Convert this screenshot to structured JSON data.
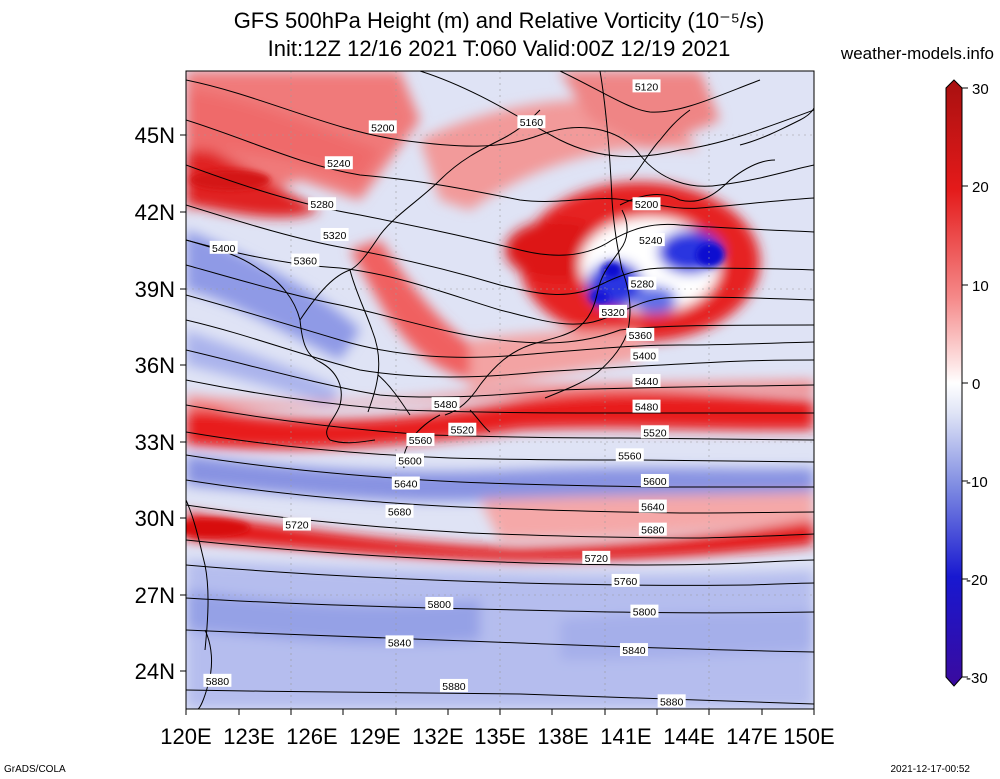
{
  "title_line1": "GFS 500hPa Height (m) and Relative Vorticity (10⁻⁵/s)",
  "title_line2": "Init:12Z 12/16 2021 T:060 Valid:00Z 12/19 2021",
  "site": "weather-models.info",
  "footer_left": "GrADS/COLA",
  "footer_right": "2021-12-17-00:52",
  "lon_labels": [
    "120E",
    "123E",
    "126E",
    "129E",
    "132E",
    "135E",
    "138E",
    "141E",
    "144E",
    "147E",
    "150E"
  ],
  "lat_labels": [
    "45N",
    "42N",
    "39N",
    "36N",
    "33N",
    "30N",
    "27N",
    "24N"
  ],
  "colorbar": {
    "ticks": [
      "30",
      "20",
      "10",
      "0",
      "-10",
      "-20",
      "-30"
    ],
    "colors": [
      "#b01010",
      "#e41a1a",
      "#f26a6a",
      "#fbd2d2",
      "#ffffff",
      "#d0d8f2",
      "#6f7fe0",
      "#1a1acc",
      "#3a0a9e"
    ]
  },
  "contour_labels": [
    {
      "text": "5120",
      "lon": 142.0,
      "lat": 46.6
    },
    {
      "text": "5160",
      "lon": 136.5,
      "lat": 45.2
    },
    {
      "text": "5200",
      "lon": 129.4,
      "lat": 45.0
    },
    {
      "text": "5240",
      "lon": 127.3,
      "lat": 43.6
    },
    {
      "text": "5280",
      "lon": 126.5,
      "lat": 42.0
    },
    {
      "text": "5320",
      "lon": 127.1,
      "lat": 40.8
    },
    {
      "text": "5360",
      "lon": 125.7,
      "lat": 39.8
    },
    {
      "text": "5400",
      "lon": 121.8,
      "lat": 40.3
    },
    {
      "text": "5200",
      "lon": 142.0,
      "lat": 42.0
    },
    {
      "text": "5240",
      "lon": 142.2,
      "lat": 40.6
    },
    {
      "text": "5280",
      "lon": 141.8,
      "lat": 38.9
    },
    {
      "text": "5320",
      "lon": 140.4,
      "lat": 37.8
    },
    {
      "text": "5360",
      "lon": 141.7,
      "lat": 36.9
    },
    {
      "text": "5400",
      "lon": 141.9,
      "lat": 36.1
    },
    {
      "text": "5440",
      "lon": 142.0,
      "lat": 35.1
    },
    {
      "text": "5480",
      "lon": 142.0,
      "lat": 34.1
    },
    {
      "text": "5480",
      "lon": 132.4,
      "lat": 34.2
    },
    {
      "text": "5520",
      "lon": 133.2,
      "lat": 33.2
    },
    {
      "text": "5520",
      "lon": 142.4,
      "lat": 33.1
    },
    {
      "text": "5560",
      "lon": 131.2,
      "lat": 32.8
    },
    {
      "text": "5560",
      "lon": 141.2,
      "lat": 32.2
    },
    {
      "text": "5600",
      "lon": 130.7,
      "lat": 32.0
    },
    {
      "text": "5600",
      "lon": 142.4,
      "lat": 31.2
    },
    {
      "text": "5640",
      "lon": 130.5,
      "lat": 31.1
    },
    {
      "text": "5640",
      "lon": 142.3,
      "lat": 30.2
    },
    {
      "text": "5680",
      "lon": 130.2,
      "lat": 30.0
    },
    {
      "text": "5680",
      "lon": 142.3,
      "lat": 29.3
    },
    {
      "text": "5720",
      "lon": 125.3,
      "lat": 29.5
    },
    {
      "text": "5720",
      "lon": 139.6,
      "lat": 28.2
    },
    {
      "text": "5760",
      "lon": 141.0,
      "lat": 27.3
    },
    {
      "text": "5800",
      "lon": 132.1,
      "lat": 26.4
    },
    {
      "text": "5800",
      "lon": 141.9,
      "lat": 26.1
    },
    {
      "text": "5840",
      "lon": 130.2,
      "lat": 24.9
    },
    {
      "text": "5840",
      "lon": 141.4,
      "lat": 24.6
    },
    {
      "text": "5880",
      "lon": 121.5,
      "lat": 23.4
    },
    {
      "text": "5880",
      "lon": 132.8,
      "lat": 23.2
    },
    {
      "text": "5880",
      "lon": 143.2,
      "lat": 22.6
    }
  ]
}
